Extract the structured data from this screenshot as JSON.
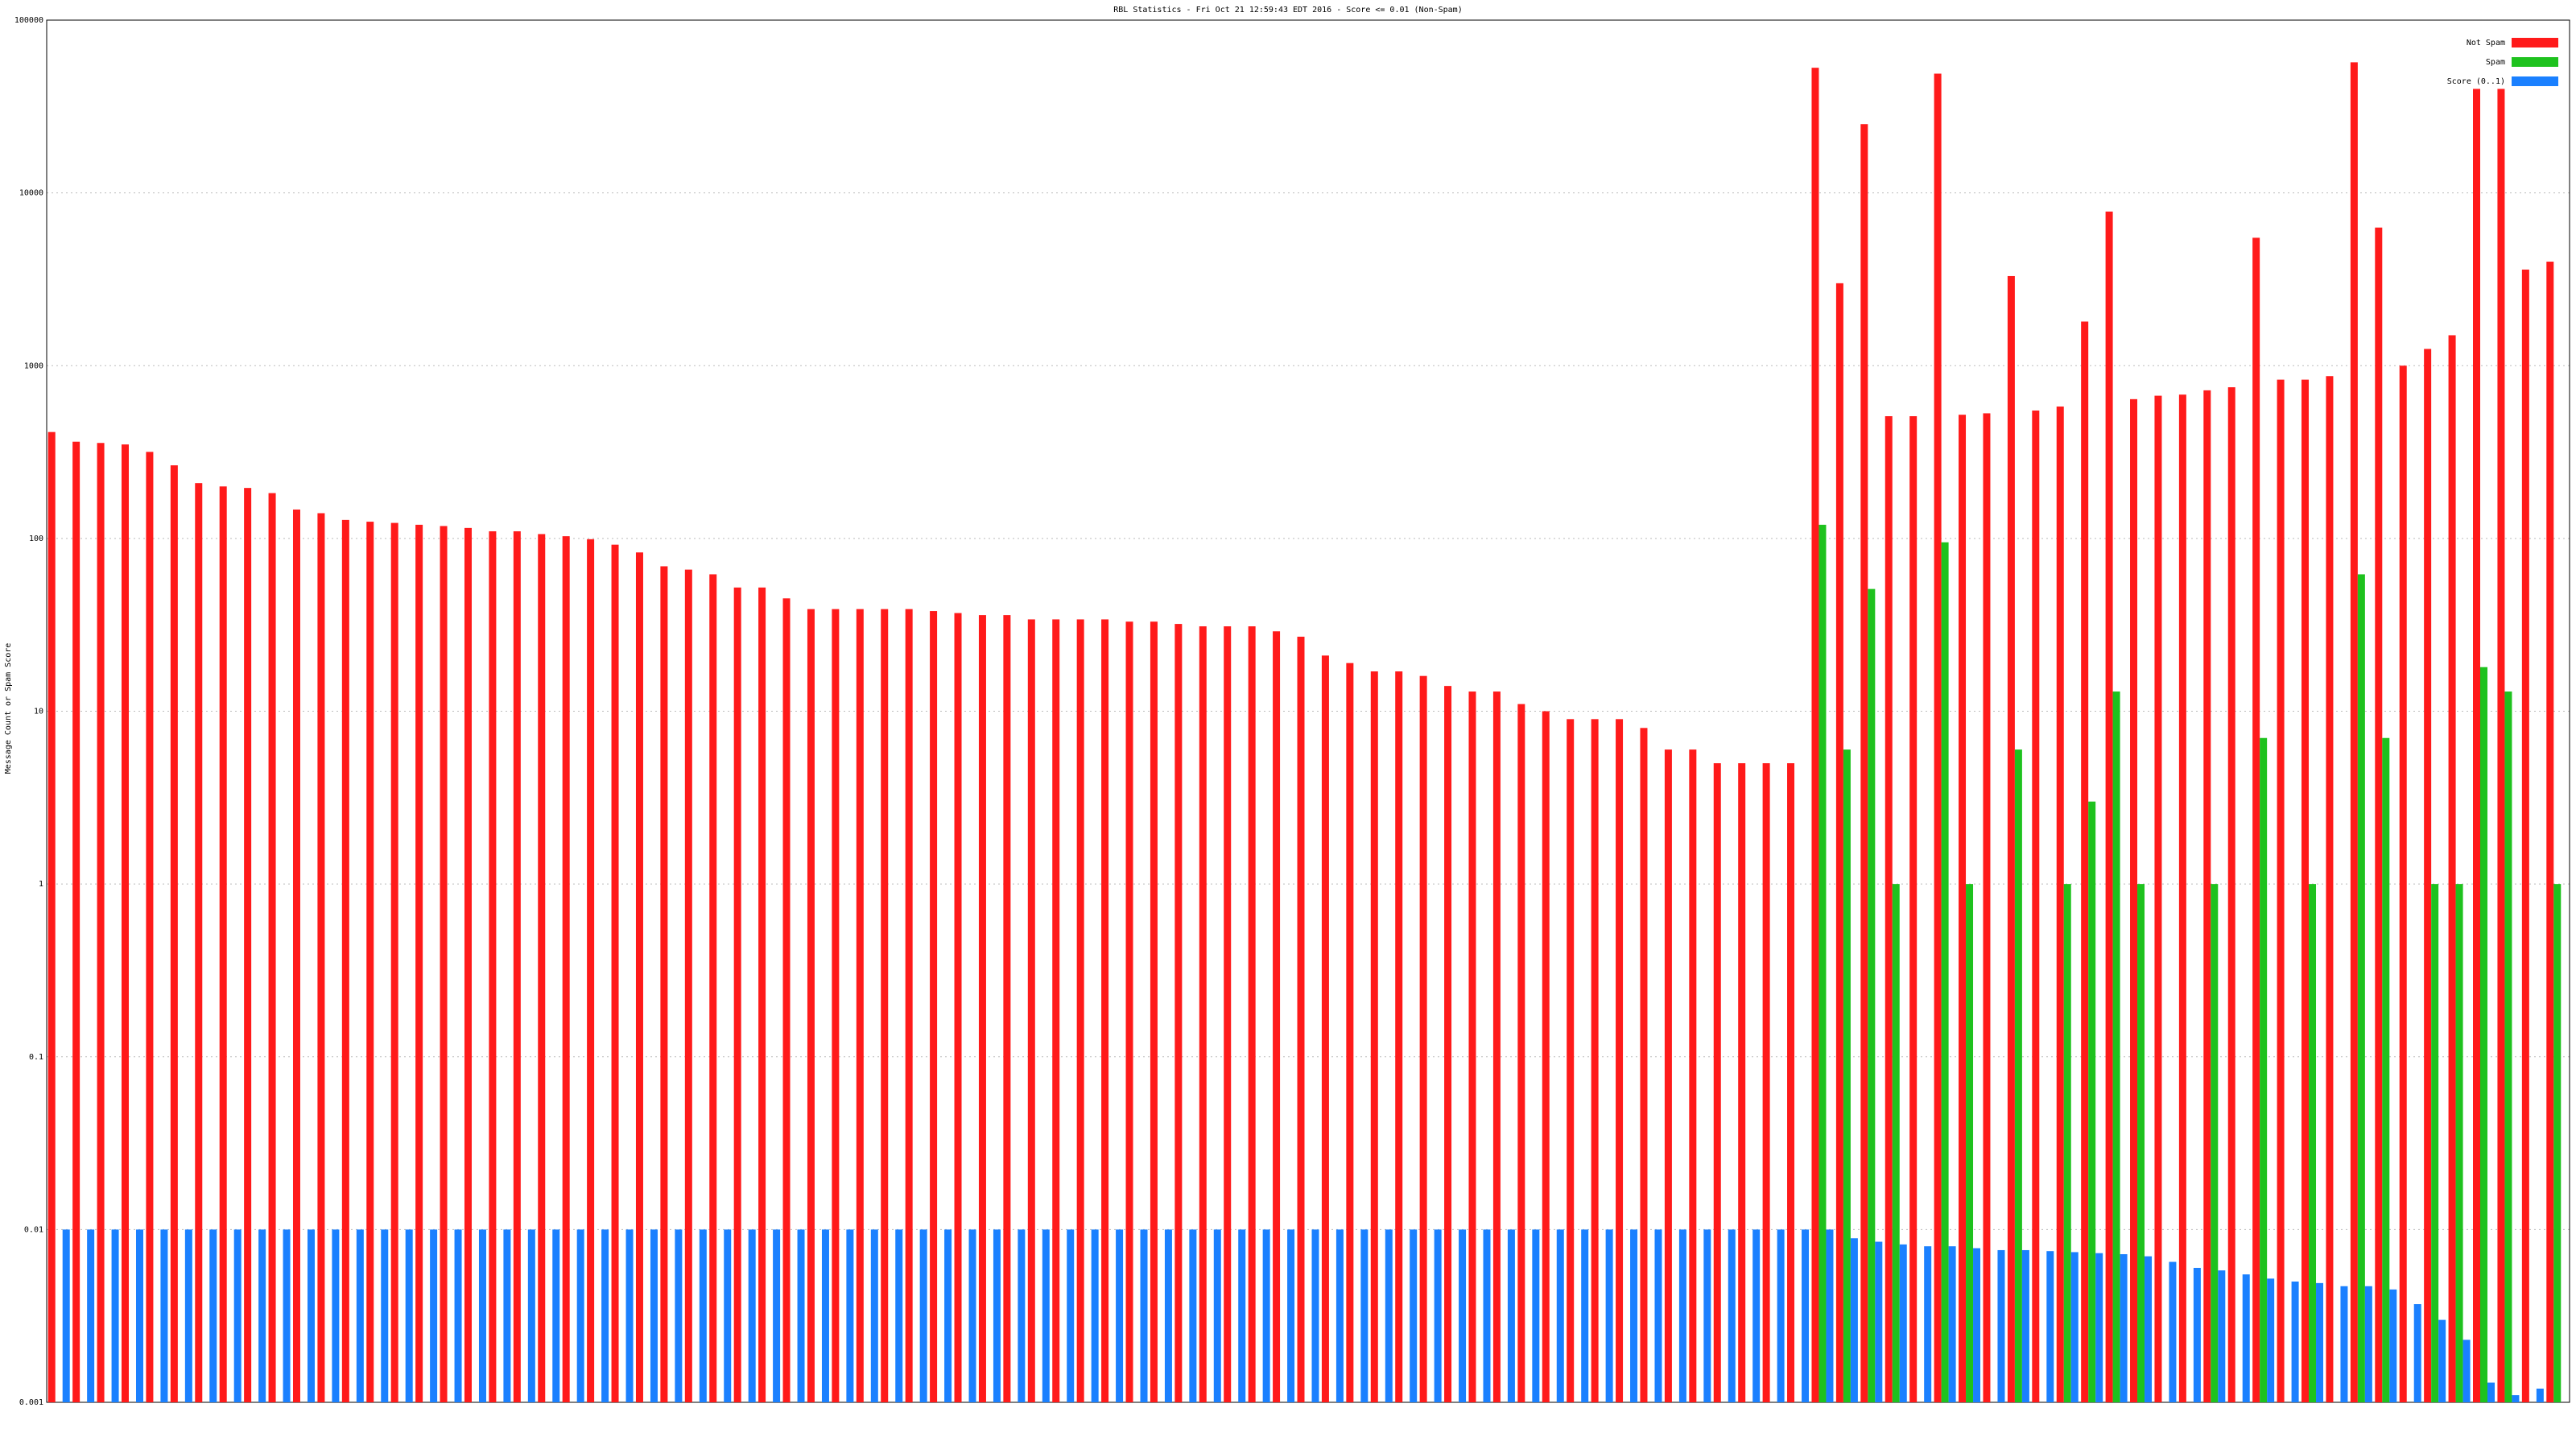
{
  "chart_data": {
    "type": "bar",
    "log_scale": true,
    "grid": true,
    "legend": "top-right",
    "title": "RBL Statistics - Fri Oct 21 12:59:43 EDT 2016 - Score <= 0.01 (Non-Spam)",
    "y_label": "Message Count or Spam Score",
    "ylim": [
      0.001,
      100000
    ],
    "yticks": [
      0.001,
      0.01,
      0.1,
      1,
      10,
      100,
      1000,
      10000,
      100000
    ],
    "categories": [
      null,
      null,
      null,
      null,
      null,
      null,
      null,
      null,
      null,
      null,
      null,
      null,
      null,
      null,
      null,
      null,
      null,
      null,
      null,
      null,
      null,
      null,
      null,
      null,
      null,
      null,
      null,
      null,
      null,
      null,
      null,
      null,
      null,
      null,
      null,
      null,
      null,
      null,
      null,
      null,
      null,
      null,
      null,
      null,
      null,
      null,
      null,
      null,
      null,
      null,
      null,
      null,
      null,
      null,
      null,
      null,
      null,
      null,
      null,
      null,
      null,
      null,
      null,
      null,
      null,
      null,
      null,
      null,
      null,
      null,
      null,
      null,
      null,
      null,
      null,
      null,
      null,
      null,
      null,
      null,
      null,
      null,
      null,
      null,
      null,
      null,
      null,
      null,
      null,
      null,
      null,
      null,
      null,
      null,
      null,
      null,
      null,
      null,
      null,
      null,
      null,
      null,
      null
    ],
    "series": [
      {
        "name": "Not Spam",
        "color": "#ff1a1a",
        "values": [
          413,
          363,
          357,
          350,
          317,
          265,
          209,
          200,
          196,
          183,
          147,
          140,
          128,
          125,
          123,
          120,
          118,
          115,
          110,
          110,
          106,
          103,
          99,
          92,
          83,
          69,
          66,
          62,
          52,
          52,
          45,
          39,
          39,
          39,
          39,
          39,
          38,
          37,
          36,
          36,
          34,
          34,
          34,
          34,
          33,
          33,
          32,
          31,
          31,
          31,
          29,
          27,
          21,
          19,
          17,
          17,
          16,
          14,
          13,
          13,
          11,
          10,
          9,
          9,
          9,
          8,
          6,
          6,
          5,
          5,
          5,
          5,
          53000,
          3000,
          25000,
          510,
          510,
          49000,
          520,
          530,
          3300,
          550,
          580,
          1800,
          7800,
          640,
          670,
          680,
          720,
          750,
          5500,
          830,
          830,
          870,
          57000,
          6300,
          1000,
          1250,
          1500,
          40000,
          40000,
          3600,
          4000
        ]
      },
      {
        "name": "Spam",
        "color": "#1ec21e",
        "values": [
          null,
          null,
          null,
          null,
          null,
          null,
          null,
          null,
          null,
          null,
          null,
          null,
          null,
          null,
          null,
          null,
          null,
          null,
          null,
          null,
          null,
          null,
          null,
          null,
          null,
          null,
          null,
          null,
          null,
          null,
          null,
          null,
          null,
          null,
          null,
          null,
          null,
          null,
          null,
          null,
          null,
          null,
          null,
          null,
          null,
          null,
          null,
          null,
          null,
          null,
          null,
          null,
          null,
          null,
          null,
          null,
          null,
          null,
          null,
          null,
          null,
          null,
          null,
          null,
          null,
          null,
          null,
          null,
          null,
          null,
          null,
          null,
          120,
          6,
          51,
          1,
          null,
          95,
          1,
          null,
          6,
          null,
          1,
          3,
          13,
          1,
          null,
          null,
          1,
          null,
          7,
          null,
          1,
          null,
          62,
          7,
          null,
          1,
          1,
          18,
          13,
          null,
          1
        ]
      },
      {
        "name": "Score (0..1)",
        "color": "#1a80ff",
        "values": [
          0.01,
          0.01,
          0.01,
          0.01,
          0.01,
          0.01,
          0.01,
          0.01,
          0.01,
          0.01,
          0.01,
          0.01,
          0.01,
          0.01,
          0.01,
          0.01,
          0.01,
          0.01,
          0.01,
          0.01,
          0.01,
          0.01,
          0.01,
          0.01,
          0.01,
          0.01,
          0.01,
          0.01,
          0.01,
          0.01,
          0.01,
          0.01,
          0.01,
          0.01,
          0.01,
          0.01,
          0.01,
          0.01,
          0.01,
          0.01,
          0.01,
          0.01,
          0.01,
          0.01,
          0.01,
          0.01,
          0.01,
          0.01,
          0.01,
          0.01,
          0.01,
          0.01,
          0.01,
          0.01,
          0.01,
          0.01,
          0.01,
          0.01,
          0.01,
          0.01,
          0.01,
          0.01,
          0.01,
          0.01,
          0.01,
          0.01,
          0.01,
          0.01,
          0.01,
          0.01,
          0.01,
          0.01,
          0.01,
          0.0089,
          0.0085,
          0.0082,
          0.008,
          0.008,
          0.0078,
          0.0076,
          0.0076,
          0.0075,
          0.0074,
          0.0073,
          0.0072,
          0.007,
          0.0065,
          0.006,
          0.0058,
          0.0055,
          0.0052,
          0.005,
          0.0049,
          0.0047,
          0.0047,
          0.0045,
          0.0037,
          0.003,
          0.0023,
          0.0013,
          0.0011,
          0.0012,
          null
        ]
      }
    ]
  }
}
